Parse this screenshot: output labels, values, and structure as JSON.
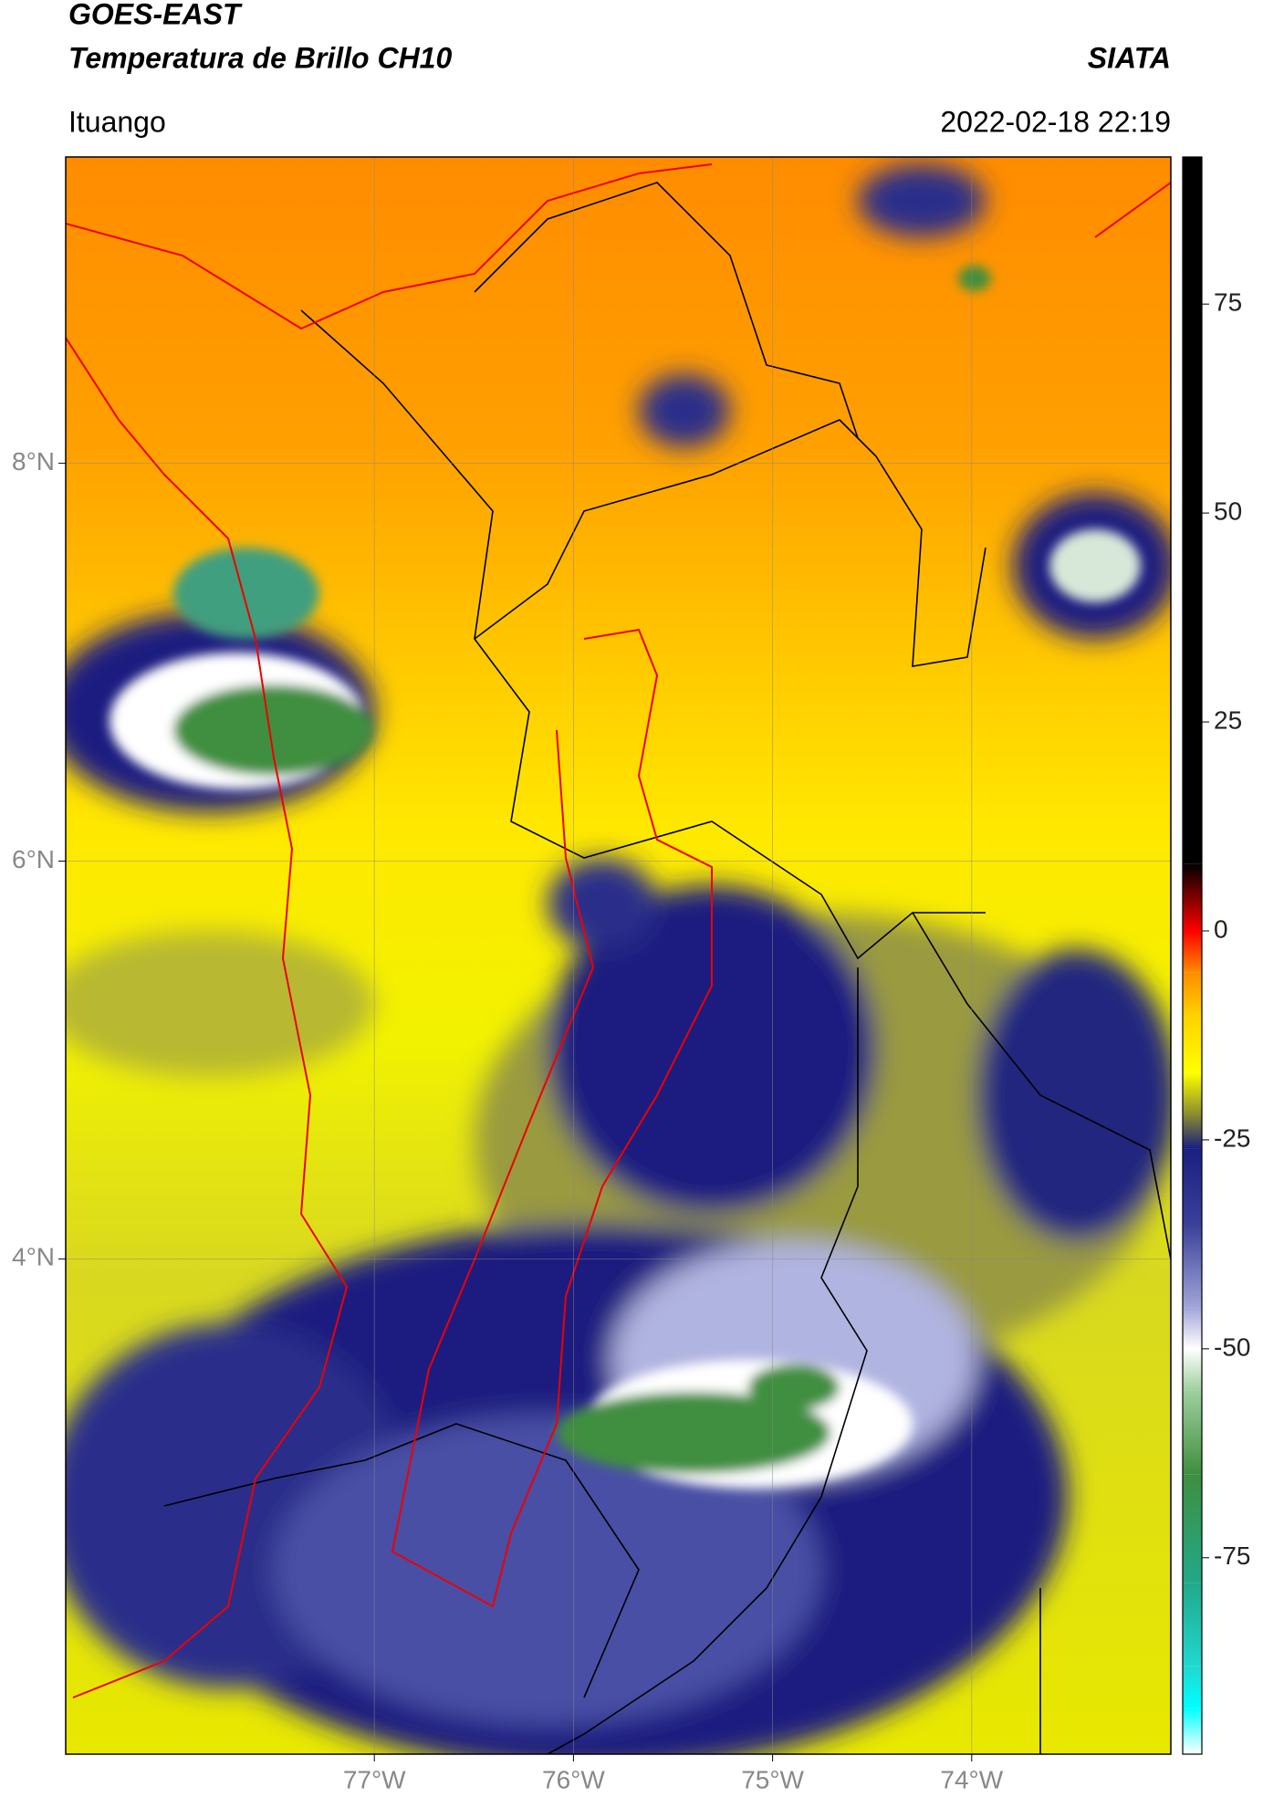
{
  "header": {
    "title": "GOES-EAST",
    "subtitle": "Temperatura de Brillo CH10",
    "source": "SIATA",
    "location": "Ituango",
    "datetime": "2022-02-18 22:19"
  },
  "map": {
    "lonlim": [
      -78.55,
      -73.0
    ],
    "latlim": [
      1.51,
      9.54
    ],
    "lat_ticks": [
      {
        "value": 8,
        "label": "8°N"
      },
      {
        "value": 6,
        "label": "6°N"
      },
      {
        "value": 4,
        "label": "4°N"
      }
    ],
    "lon_ticks": [
      {
        "value": -77,
        "label": "77°W"
      },
      {
        "value": -76,
        "label": "76°W"
      },
      {
        "value": -75,
        "label": "75°W"
      },
      {
        "value": -74,
        "label": "74°W"
      }
    ],
    "grid": true
  },
  "colorbar": {
    "lim": [
      -98.5,
      92.6
    ],
    "ticks": [
      75,
      50,
      25,
      0,
      -25,
      -50,
      -75
    ],
    "stops": [
      {
        "value": 8,
        "color": "#000000"
      },
      {
        "value": 0,
        "color": "#ff0000"
      },
      {
        "value": -5,
        "color": "#ff8c00"
      },
      {
        "value": -10,
        "color": "#ffd000"
      },
      {
        "value": -17,
        "color": "#ffff00"
      },
      {
        "value": -22,
        "color": "#8a8a30"
      },
      {
        "value": -26,
        "color": "#1a1f80"
      },
      {
        "value": -35,
        "color": "#3a3f99"
      },
      {
        "value": -45,
        "color": "#a0a4d8"
      },
      {
        "value": -50,
        "color": "#ffffff"
      },
      {
        "value": -55,
        "color": "#9fcf9f"
      },
      {
        "value": -65,
        "color": "#3f8f3f"
      },
      {
        "value": -78,
        "color": "#22a88a"
      },
      {
        "value": -88,
        "color": "#20d8d0"
      },
      {
        "value": -93,
        "color": "#00ffff"
      },
      {
        "value": -98.5,
        "color": "#ffffff"
      }
    ]
  }
}
